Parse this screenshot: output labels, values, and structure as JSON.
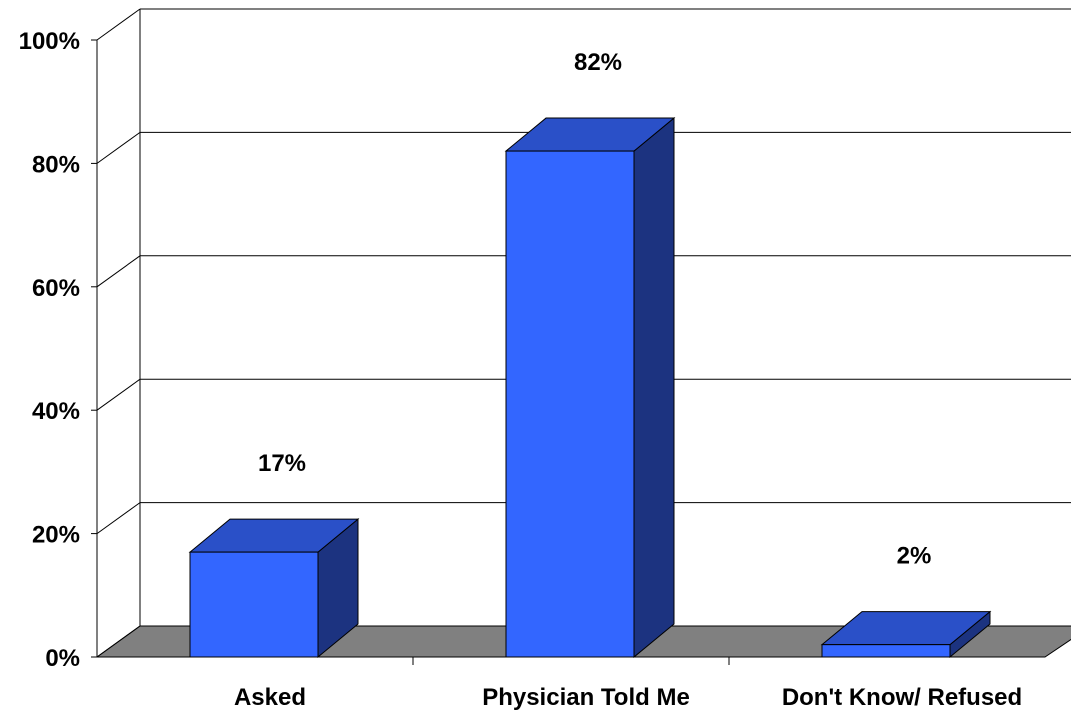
{
  "chart_data": {
    "type": "bar",
    "categories": [
      "Asked",
      "Physician Told Me",
      "Don't Know/ Refused"
    ],
    "values": [
      17,
      82,
      2
    ],
    "data_labels": [
      "17%",
      "82%",
      "2%"
    ],
    "y_ticks": [
      "0%",
      "20%",
      "40%",
      "60%",
      "80%",
      "100%"
    ],
    "ylim": [
      0,
      100
    ],
    "grid": true,
    "style": "3d",
    "colors": {
      "bar_front": "#3366ff",
      "bar_top": "#2a50c8",
      "bar_side": "#1c3380",
      "floor": "#808080"
    }
  }
}
